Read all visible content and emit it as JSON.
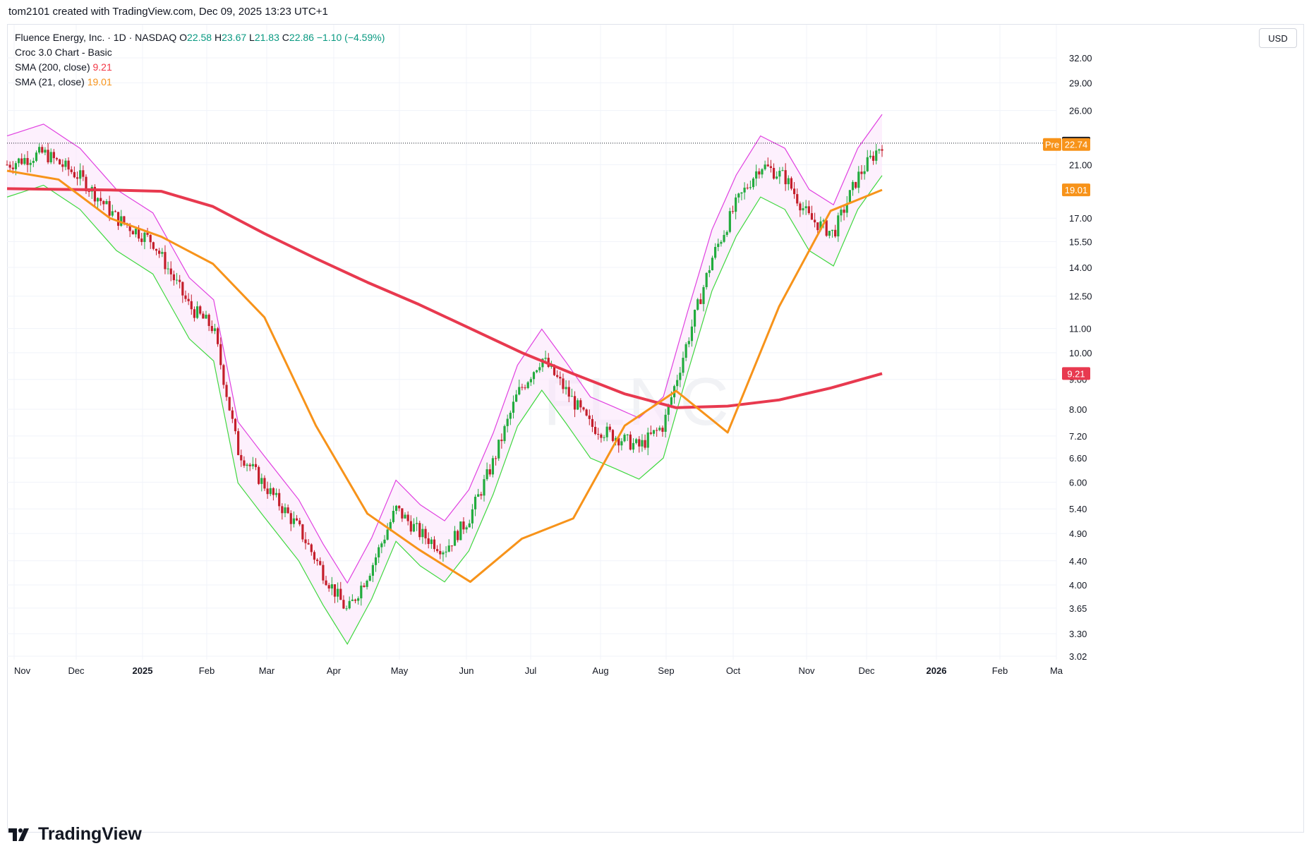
{
  "header": {
    "caption": "tom2101 created with TradingView.com, Dec 09, 2025 13:23 UTC+1"
  },
  "legend": {
    "symbol": "Fluence Energy, Inc. · 1D · NASDAQ",
    "o_label": "O",
    "o": "22.58",
    "h_label": "H",
    "h": "23.67",
    "l_label": "L",
    "l": "21.83",
    "c_label": "C",
    "c": "22.86",
    "change": "−1.10 (−4.59%)",
    "indicator": "Croc 3.0 Chart - Basic",
    "sma200_label": "SMA (200, close)",
    "sma200_value": "9.21",
    "sma21_label": "SMA (21, close)",
    "sma21_value": "19.01"
  },
  "currency_button": "USD",
  "watermark": "FLNC",
  "footer": {
    "brand": "TradingView"
  },
  "colors": {
    "up": "#22ab3e",
    "down": "#c41e2b",
    "sma200": "#e8394f",
    "sma21": "#f7931a",
    "cloud_magenta": "#e040e0",
    "cloud_green": "#3fd83f",
    "pre_market": "#f7931a"
  },
  "chart_data": {
    "type": "candlestick",
    "scale": "log",
    "y_ticks": [
      "32.00",
      "29.00",
      "26.00",
      "21.00",
      "17.00",
      "15.50",
      "14.00",
      "12.50",
      "11.00",
      "10.00",
      "9.00",
      "8.00",
      "7.20",
      "6.60",
      "6.00",
      "5.40",
      "4.90",
      "4.40",
      "4.00",
      "3.65",
      "3.30",
      "3.02"
    ],
    "x_ticks": [
      "Nov",
      "Dec",
      "2025",
      "Feb",
      "Mar",
      "Apr",
      "May",
      "Jun",
      "Jul",
      "Aug",
      "Sep",
      "Oct",
      "Nov",
      "Dec",
      "2026",
      "Feb",
      "Ma"
    ],
    "ylim": [
      3.02,
      36
    ],
    "price_labels": [
      {
        "text": "22.86",
        "value": 22.86,
        "kind": "last"
      },
      {
        "text": "Pre",
        "value": 22.74,
        "kind": "pre_tag"
      },
      {
        "text": "22.74",
        "value": 22.74,
        "kind": "pre"
      },
      {
        "text": "19.01",
        "value": 19.01,
        "kind": "sma21"
      },
      {
        "text": "9.21",
        "value": 9.21,
        "kind": "sma200"
      }
    ],
    "series": [
      {
        "name": "SMA (200, close)",
        "values": [
          19.1,
          19.05,
          19.0,
          18.9,
          17.8,
          16.0,
          14.5,
          13.2,
          12.1,
          11.0,
          10.0,
          9.2,
          8.5,
          8.05,
          8.1,
          8.3,
          8.7,
          9.21
        ]
      },
      {
        "name": "SMA (21, close)",
        "values": [
          20.5,
          19.8,
          17.0,
          15.8,
          14.2,
          11.5,
          7.5,
          5.3,
          4.6,
          4.05,
          4.8,
          5.2,
          7.5,
          8.6,
          7.3,
          12.0,
          17.5,
          19.01
        ]
      }
    ],
    "path_points": [
      [
        0,
        21
      ],
      [
        3,
        22
      ],
      [
        6,
        20
      ],
      [
        9,
        17
      ],
      [
        12,
        15.5
      ],
      [
        15,
        12
      ],
      [
        17,
        11
      ],
      [
        19,
        6.8
      ],
      [
        21,
        6
      ],
      [
        24,
        5
      ],
      [
        26,
        4.2
      ],
      [
        28,
        3.6
      ],
      [
        30,
        4.3
      ],
      [
        32,
        5.4
      ],
      [
        34,
        4.9
      ],
      [
        36,
        4.6
      ],
      [
        38,
        5.2
      ],
      [
        40,
        6.5
      ],
      [
        42,
        8.5
      ],
      [
        44,
        9.8
      ],
      [
        46,
        8.6
      ],
      [
        48,
        7.5
      ],
      [
        50,
        7.2
      ],
      [
        52,
        6.9
      ],
      [
        54,
        7.5
      ],
      [
        56,
        10.5
      ],
      [
        58,
        14.5
      ],
      [
        60,
        18
      ],
      [
        62,
        21
      ],
      [
        64,
        20
      ],
      [
        66,
        17
      ],
      [
        68,
        16
      ],
      [
        70,
        20
      ],
      [
        72,
        22.86
      ]
    ]
  }
}
